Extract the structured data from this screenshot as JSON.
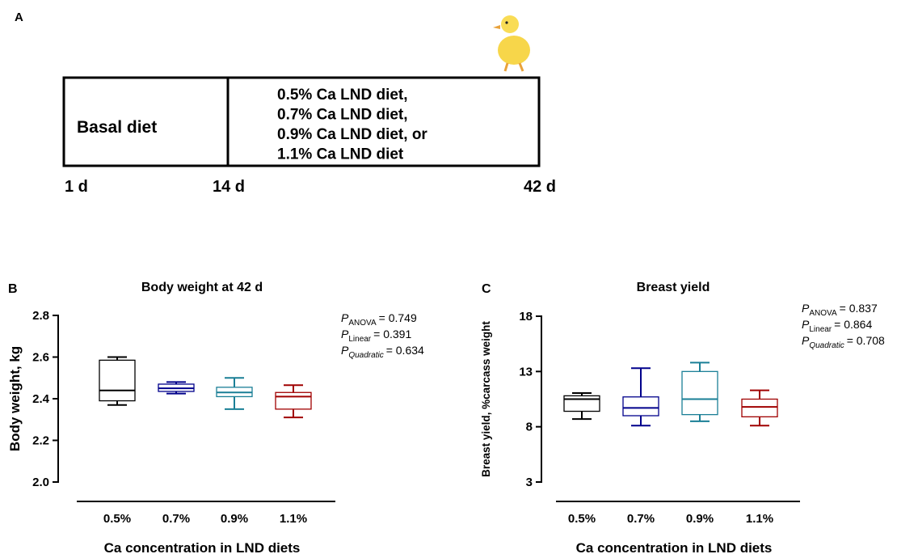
{
  "diagram": {
    "panel_label": "A",
    "start_box": "Basal diet",
    "diet_lines": [
      "0.5% Ca LND diet,",
      "0.7% Ca LND diet,",
      "0.9% Ca LND diet, or",
      "1.1% Ca LND diet"
    ],
    "days": [
      "1 d",
      "14 d",
      "42 d"
    ]
  },
  "chart_data": [
    {
      "type": "box",
      "panel_label": "B",
      "title": "Body weight at 42 d",
      "y_label": "Body weight, kg",
      "x_label": "Ca concentration in LND diets",
      "categories": [
        "0.5%",
        "0.7%",
        "0.9%",
        "1.1%"
      ],
      "colors": [
        "#000000",
        "#00008b",
        "#1a7f96",
        "#a00000"
      ],
      "boxes": [
        {
          "min": 2.37,
          "q1": 2.39,
          "median": 2.44,
          "q3": 2.585,
          "max": 2.6
        },
        {
          "min": 2.425,
          "q1": 2.435,
          "median": 2.45,
          "q3": 2.47,
          "max": 2.48
        },
        {
          "min": 2.35,
          "q1": 2.41,
          "median": 2.43,
          "q3": 2.455,
          "max": 2.5
        },
        {
          "min": 2.31,
          "q1": 2.35,
          "median": 2.41,
          "q3": 2.43,
          "max": 2.465
        }
      ],
      "ylim": [
        2.0,
        2.8
      ],
      "yticks": [
        {
          "value": 2.0,
          "label": "2.0"
        },
        2.2,
        2.4,
        2.6,
        2.8
      ],
      "annotations": [
        {
          "symbol": "P",
          "subscript": "ANOVA",
          "text": "= 0.749"
        },
        {
          "symbol": "P",
          "subscript": "Linear",
          "text": "= 0.391"
        },
        {
          "symbol": "P",
          "subscript": "Quadratic",
          "text": "= 0.634"
        }
      ]
    },
    {
      "type": "box",
      "panel_label": "C",
      "title": "Breast yield",
      "y_label": "Breast yield, %carcass weight",
      "x_label": "Ca concentration in LND diets",
      "categories": [
        "0.5%",
        "0.7%",
        "0.9%",
        "1.1%"
      ],
      "colors": [
        "#000000",
        "#00008b",
        "#1a7f96",
        "#a00000"
      ],
      "boxes": [
        {
          "min": 8.7,
          "q1": 9.4,
          "median": 10.5,
          "q3": 10.8,
          "max": 11.05
        },
        {
          "min": 8.1,
          "q1": 9.0,
          "median": 9.7,
          "q3": 10.7,
          "max": 13.3
        },
        {
          "min": 8.5,
          "q1": 9.1,
          "median": 10.5,
          "q3": 13.0,
          "max": 13.8
        },
        {
          "min": 8.1,
          "q1": 8.9,
          "median": 9.8,
          "q3": 10.5,
          "max": 11.3
        }
      ],
      "ylim": [
        3,
        18
      ],
      "yticks": [
        3,
        8,
        13,
        18
      ],
      "annotations": [
        {
          "symbol": "P",
          "subscript": "ANOVA",
          "text": "= 0.837"
        },
        {
          "symbol": "P",
          "subscript": "Linear",
          "text": "= 0.864"
        },
        {
          "symbol": "P",
          "subscript": "Quadratic",
          "text": "= 0.708"
        }
      ]
    }
  ]
}
